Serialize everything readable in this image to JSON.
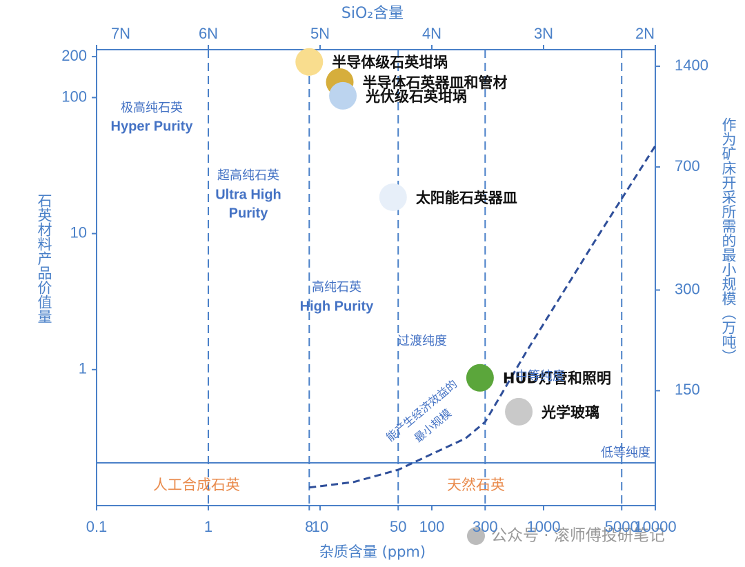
{
  "chart_data": {
    "type": "scatter",
    "top_axis_title": "SiO₂含量",
    "xlabel": "杂质含量 (ppm)",
    "ylabel": "石英材料产品价值量",
    "y2label": "作为矿床开采所需的最小规模（万吨）",
    "xscale": "log",
    "yscale": "log",
    "y2scale": "log",
    "xlim": [
      0.1,
      10000
    ],
    "xticks": [
      0.1,
      1,
      8,
      10,
      50,
      100,
      300,
      1000,
      5000,
      10000
    ],
    "x2ticks": [
      {
        "value": 0.1,
        "label": "7N"
      },
      {
        "value": 1,
        "label": "6N"
      },
      {
        "value": 10,
        "label": "5N"
      },
      {
        "value": 100,
        "label": "4N"
      },
      {
        "value": 1000,
        "label": "3N"
      },
      {
        "value": 10000,
        "label": "2N"
      }
    ],
    "ylim": [
      0.1,
      225
    ],
    "yticks": [
      1,
      10,
      100,
      200
    ],
    "y2lim": [
      68,
      1570
    ],
    "y2ticks": [
      150,
      300,
      700,
      1400
    ],
    "dividers": [
      1,
      8,
      50,
      300,
      5000
    ],
    "points": {
      "names": [
        "半导体级石英坩埚",
        "半导体石英器皿和管材",
        "光伏级石英坩埚",
        "太阳能石英器皿",
        "HUD灯管和照明",
        "光学玻璃"
      ],
      "x": [
        8,
        15,
        16,
        45,
        270,
        600
      ],
      "values": [
        183,
        130,
        103,
        18.5,
        0.87,
        0.49
      ],
      "colors": [
        "#f9dd8e",
        "#d6ae3c",
        "#bcd4ef",
        "#e7eff9",
        "#5ba63b",
        "#c9c9c9"
      ]
    },
    "curve": {
      "x": [
        8,
        20,
        50,
        100,
        200,
        300,
        700,
        3000,
        10000
      ],
      "values": [
        77,
        80,
        87,
        97,
        108,
        121,
        196,
        430,
        810
      ],
      "axis": "y2",
      "color": "#2f4f9a"
    },
    "annotations": [
      "极高纯石英",
      "Hyper Purity",
      "超高纯石英",
      "Ultra High",
      "Purity",
      "高纯石英",
      "High Purity",
      "过渡纯度",
      "中等纯度",
      "低等纯度",
      "人工合成石英",
      "天然石英",
      "能产生经济效益的",
      "最小规模"
    ],
    "watermark": "公众号 · 滚师傅投研笔记"
  }
}
